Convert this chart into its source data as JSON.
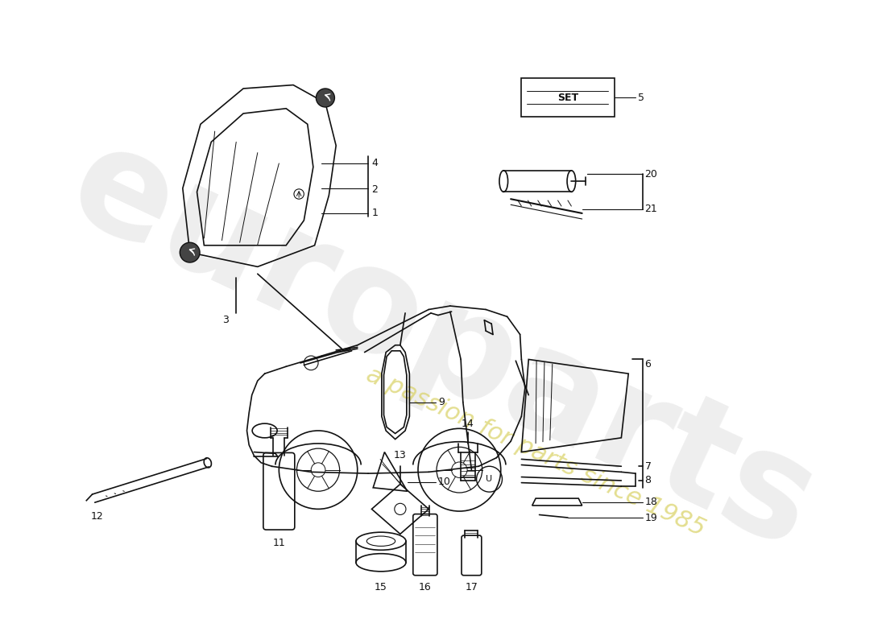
{
  "bg_color": "#ffffff",
  "line_color": "#111111",
  "watermark1": "europarts",
  "watermark2": "a passion for parts since 1985",
  "figsize": [
    11.0,
    8.0
  ],
  "dpi": 100
}
